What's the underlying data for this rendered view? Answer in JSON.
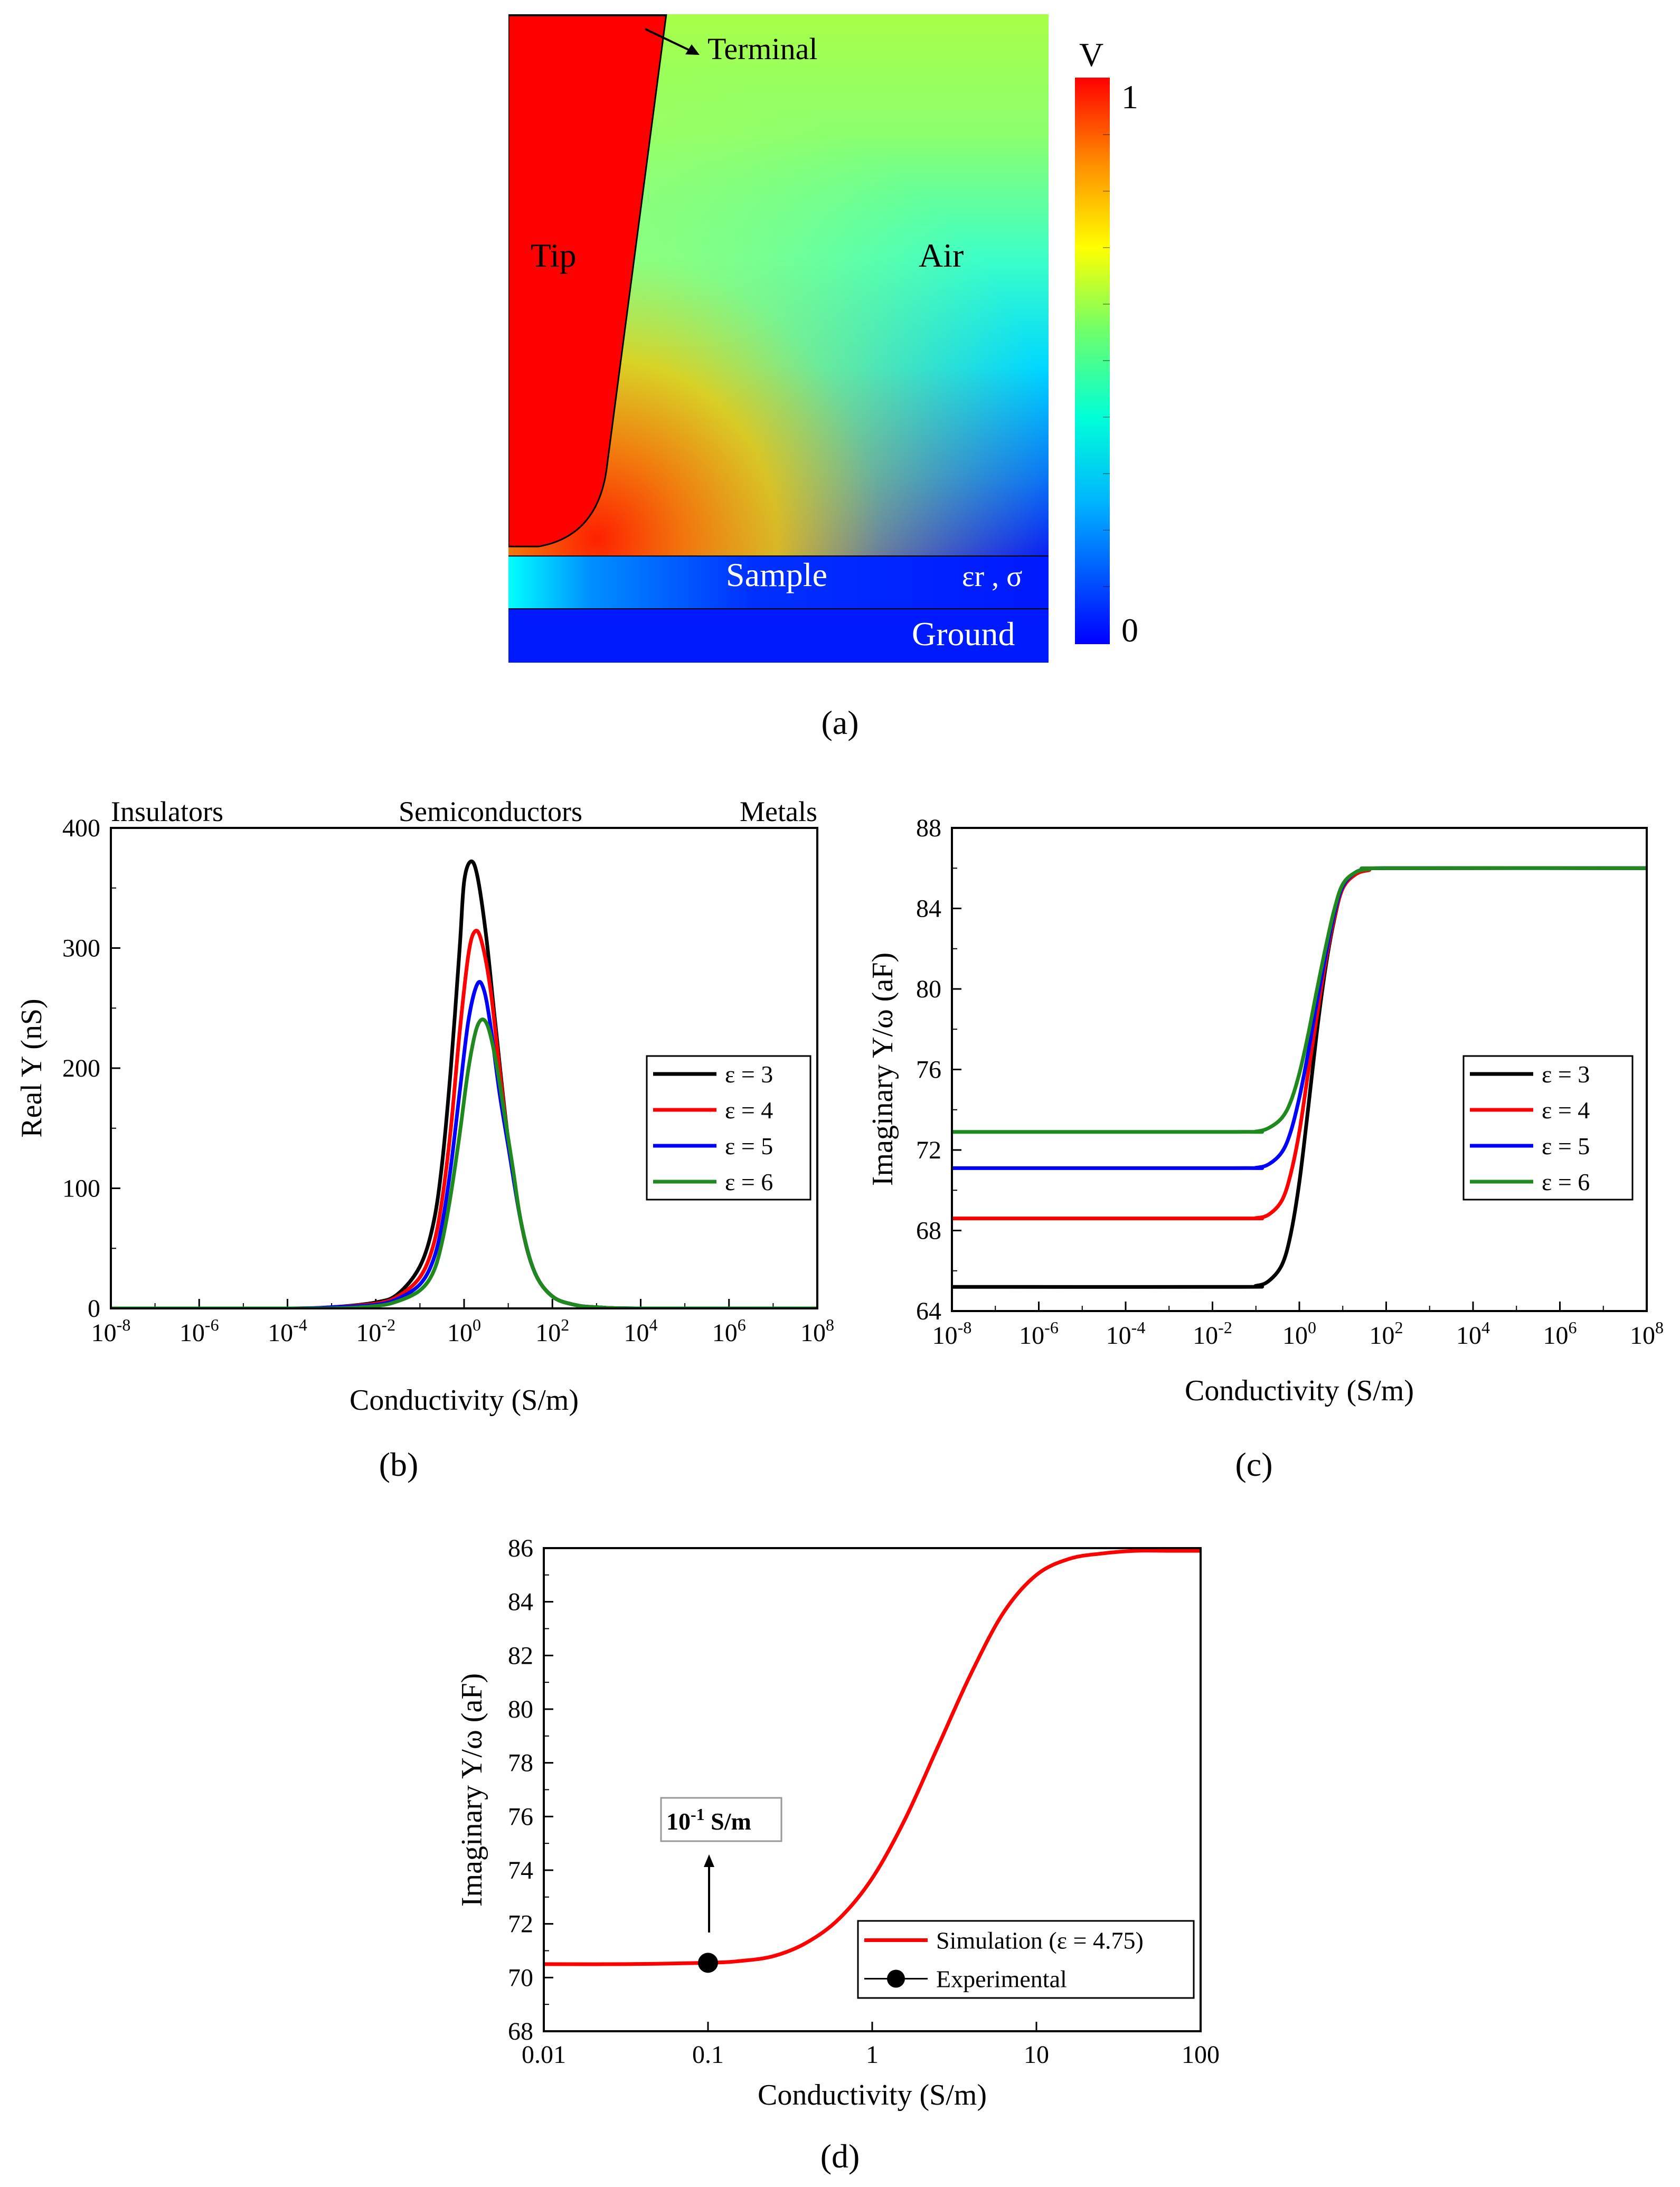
{
  "chart_data": [
    {
      "id": "a",
      "type": "heatmap",
      "panel_label": "(a)",
      "title": "",
      "colorbar": {
        "title": "V",
        "max_label": "1",
        "min_label": "0",
        "range": [
          0,
          1
        ]
      },
      "regions": {
        "tip": "Tip",
        "air": "Air",
        "sample": "Sample",
        "sample_params": "εr , σ",
        "ground": "Ground",
        "terminal": "Terminal"
      }
    },
    {
      "id": "b",
      "type": "line",
      "panel_label": "(b)",
      "xlabel": "Conductivity (S/m)",
      "ylabel": "Real Y (nS)",
      "xscale": "log10",
      "xlim": [
        -8,
        8
      ],
      "ylim": [
        0,
        400
      ],
      "xticks": [
        -8,
        -6,
        -4,
        -2,
        0,
        2,
        4,
        6,
        8
      ],
      "yticks": [
        0,
        100,
        200,
        300,
        400
      ],
      "region_labels": [
        "Insulators",
        "Semiconductors",
        "Metals"
      ],
      "legend": "right",
      "series": [
        {
          "name": "ε = 3",
          "color": "#000000",
          "log_sigma": [
            -8,
            -4,
            -3,
            -2,
            -1.5,
            -1,
            -0.7,
            -0.5,
            -0.3,
            -0.1,
            0,
            0.15,
            0.3,
            0.5,
            0.7,
            1,
            1.3,
            1.6,
            2,
            2.5,
            3,
            4,
            8
          ],
          "values": [
            0,
            0,
            1,
            5,
            12,
            35,
            70,
            120,
            200,
            300,
            355,
            372,
            360,
            310,
            240,
            140,
            70,
            30,
            10,
            3,
            1,
            0,
            0
          ]
        },
        {
          "name": "ε = 4",
          "color": "#ff0000",
          "log_sigma": [
            -8,
            -4,
            -3,
            -2,
            -1.5,
            -1,
            -0.7,
            -0.5,
            -0.3,
            -0.1,
            0.1,
            0.25,
            0.4,
            0.6,
            0.8,
            1,
            1.3,
            1.6,
            2,
            2.5,
            3,
            4,
            8
          ],
          "values": [
            0,
            0,
            1,
            4,
            10,
            26,
            52,
            90,
            150,
            230,
            295,
            314,
            305,
            265,
            200,
            140,
            70,
            30,
            10,
            3,
            1,
            0,
            0
          ]
        },
        {
          "name": "ε = 5",
          "color": "#0000ff",
          "log_sigma": [
            -8,
            -4,
            -3,
            -2,
            -1.5,
            -1,
            -0.7,
            -0.5,
            -0.3,
            -0.1,
            0.1,
            0.3,
            0.45,
            0.6,
            0.8,
            1,
            1.3,
            1.6,
            2,
            2.5,
            3,
            4,
            8
          ],
          "values": [
            0,
            0,
            1,
            3,
            8,
            20,
            40,
            70,
            118,
            180,
            240,
            270,
            265,
            235,
            180,
            135,
            70,
            30,
            10,
            3,
            1,
            0,
            0
          ]
        },
        {
          "name": "ε = 6",
          "color": "#1e8a1e",
          "log_sigma": [
            -8,
            -4,
            -3,
            -2,
            -1.5,
            -1,
            -0.7,
            -0.5,
            -0.3,
            -0.1,
            0.1,
            0.3,
            0.5,
            0.7,
            0.9,
            1.1,
            1.3,
            1.6,
            2,
            2.5,
            3,
            4,
            8
          ],
          "values": [
            0,
            0,
            0,
            2,
            6,
            15,
            30,
            55,
            95,
            145,
            200,
            235,
            238,
            210,
            165,
            118,
            70,
            30,
            10,
            3,
            1,
            0,
            0
          ]
        }
      ]
    },
    {
      "id": "c",
      "type": "line",
      "panel_label": "(c)",
      "xlabel": "Conductivity (S/m)",
      "ylabel": "Imaginary Y/ω (aF)",
      "xscale": "log10",
      "xlim": [
        -8,
        8
      ],
      "ylim": [
        64,
        88
      ],
      "xticks": [
        -8,
        -6,
        -4,
        -2,
        0,
        2,
        4,
        6,
        8
      ],
      "yticks": [
        64,
        68,
        72,
        76,
        80,
        84,
        88
      ],
      "legend": "right",
      "series": [
        {
          "name": "ε = 3",
          "color": "#000000",
          "log_sigma": [
            -8,
            -1.5,
            -1,
            -0.7,
            -0.4,
            -0.2,
            0,
            0.2,
            0.4,
            0.6,
            0.8,
            1,
            1.3,
            1.6,
            2,
            8
          ],
          "values": [
            65.2,
            65.2,
            65.25,
            65.5,
            66.3,
            67.8,
            70.4,
            74,
            77.8,
            81,
            83.4,
            85,
            85.7,
            85.9,
            86,
            86
          ]
        },
        {
          "name": "ε = 4",
          "color": "#ff0000",
          "log_sigma": [
            -8,
            -1.5,
            -1,
            -0.7,
            -0.4,
            -0.2,
            0,
            0.2,
            0.4,
            0.6,
            0.8,
            1,
            1.3,
            1.6,
            2,
            8
          ],
          "values": [
            68.6,
            68.6,
            68.62,
            68.8,
            69.5,
            70.8,
            72.9,
            75.8,
            78.6,
            81.3,
            83.5,
            85,
            85.7,
            85.9,
            86,
            86
          ]
        },
        {
          "name": "ε = 5",
          "color": "#0000ff",
          "log_sigma": [
            -8,
            -1.5,
            -1,
            -0.7,
            -0.4,
            -0.2,
            0,
            0.2,
            0.4,
            0.6,
            0.8,
            1,
            1.3,
            1.6,
            2,
            8
          ],
          "values": [
            71.1,
            71.1,
            71.12,
            71.3,
            71.9,
            72.9,
            74.6,
            76.8,
            79.3,
            81.6,
            83.7,
            85.1,
            85.8,
            85.95,
            86,
            86
          ]
        },
        {
          "name": "ε = 6",
          "color": "#1e8a1e",
          "log_sigma": [
            -8,
            -1.5,
            -1,
            -0.7,
            -0.4,
            -0.2,
            0,
            0.2,
            0.4,
            0.6,
            0.8,
            1,
            1.3,
            1.6,
            2,
            8
          ],
          "values": [
            72.9,
            72.9,
            72.92,
            73.1,
            73.6,
            74.4,
            75.8,
            77.7,
            79.9,
            82,
            83.9,
            85.2,
            85.8,
            85.95,
            86,
            86
          ]
        }
      ]
    },
    {
      "id": "d",
      "type": "line",
      "panel_label": "(d)",
      "xlabel": "Conductivity (S/m)",
      "ylabel": "Imaginary Y/ω (aF)",
      "xscale": "log10",
      "xlim": [
        -2,
        2
      ],
      "ylim": [
        68,
        86
      ],
      "xticks": [
        -2,
        -1,
        0,
        1,
        2
      ],
      "xtick_labels": [
        "0.01",
        "0.1",
        "1",
        "10",
        "100"
      ],
      "yticks": [
        68,
        70,
        72,
        74,
        76,
        78,
        80,
        82,
        84,
        86
      ],
      "legend": "bottom-right",
      "annotation": {
        "base": "10",
        "exponent": "-1",
        "unit": " S/m"
      },
      "series": [
        {
          "name": "Simulation (ε = 4.75)",
          "color": "#ff0000",
          "log_sigma": [
            -2,
            -1.5,
            -1,
            -0.8,
            -0.6,
            -0.4,
            -0.2,
            0,
            0.2,
            0.4,
            0.6,
            0.8,
            1,
            1.2,
            1.4,
            1.6,
            1.8,
            2
          ],
          "values": [
            70.5,
            70.5,
            70.55,
            70.62,
            70.8,
            71.3,
            72.2,
            73.7,
            75.9,
            78.6,
            81.3,
            83.6,
            85,
            85.6,
            85.8,
            85.9,
            85.9,
            85.9
          ]
        }
      ],
      "experimental": {
        "name": "Experimental",
        "log_sigma": -1,
        "value": 70.55
      }
    }
  ]
}
